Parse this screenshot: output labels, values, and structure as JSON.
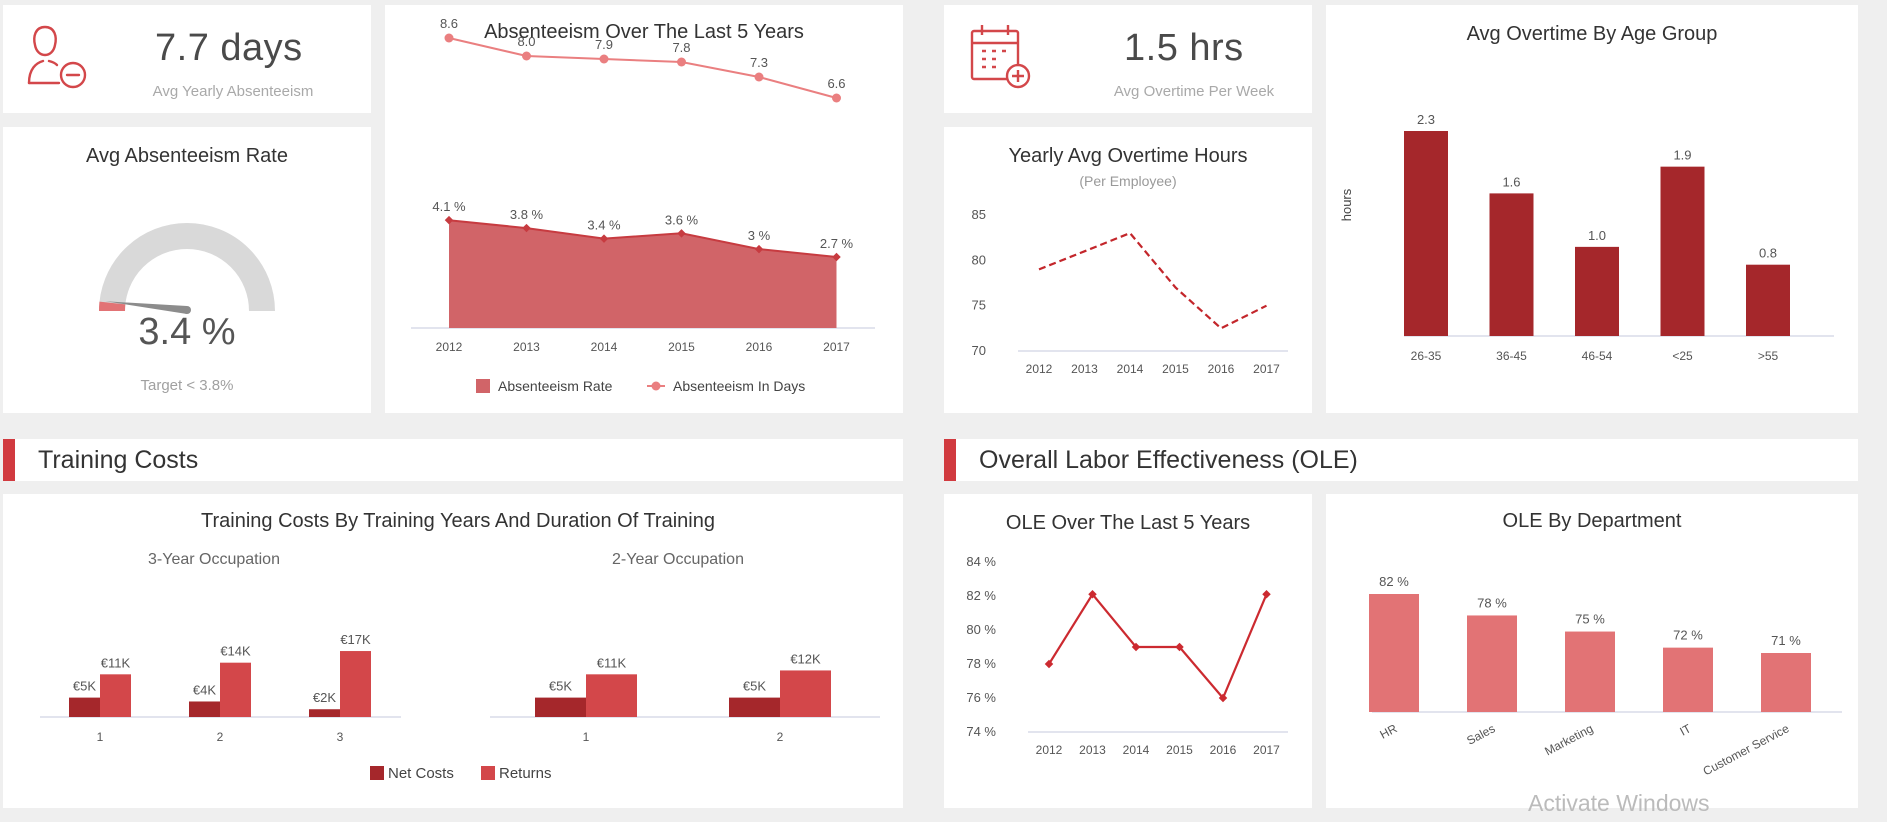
{
  "colors": {
    "dark_red": "#a5272b",
    "red": "#d3474a",
    "area": "#d16468",
    "line_pink": "#ea7f80",
    "bar_pink": "#e27375",
    "gauge_bg": "#d9d9d9"
  },
  "kpi_absenteeism": {
    "value": "7.7 days",
    "label": "Avg Yearly Absenteeism",
    "icon": "user-minus-icon"
  },
  "kpi_overtime": {
    "value": "1.5 hrs",
    "label": "Avg Overtime Per Week",
    "icon": "calendar-plus-icon"
  },
  "gauge": {
    "title": "Avg Absenteeism Rate",
    "value": 3.4,
    "value_label": "3.4 %",
    "target_label": "Target < 3.8%",
    "target": 3.8
  },
  "sections": {
    "training": "Training Costs",
    "ole": "Overall Labor Effectiveness (OLE)"
  },
  "watermark": "Activate Windows",
  "chart_data": [
    {
      "id": "absenteeism",
      "type": "line",
      "title": "Absenteeism Over The Last 5 Years",
      "x": [
        "2012",
        "2013",
        "2014",
        "2015",
        "2016",
        "2017"
      ],
      "series": [
        {
          "name": "Absenteeism Rate",
          "kind": "area",
          "values": [
            4.1,
            3.8,
            3.4,
            3.6,
            3.0,
            2.7
          ],
          "labels": [
            "4.1 %",
            "3.8 %",
            "3.4 %",
            "3.6 %",
            "3 %",
            "2.7 %"
          ]
        },
        {
          "name": "Absenteeism In Days",
          "kind": "line",
          "values": [
            8.6,
            8.0,
            7.9,
            7.8,
            7.3,
            6.6
          ],
          "labels": [
            "8.6",
            "8.0",
            "7.9",
            "7.8",
            "7.3",
            "6.6"
          ]
        }
      ],
      "legend": "bottom"
    },
    {
      "id": "overtime_hours",
      "type": "line",
      "title": "Yearly Avg Overtime Hours",
      "subtitle": "(Per Employee)",
      "x": [
        "2012",
        "2013",
        "2014",
        "2015",
        "2016",
        "2017"
      ],
      "values": [
        79,
        81,
        83,
        77,
        72.5,
        75
      ],
      "yticks": [
        "85",
        "80",
        "75",
        "70"
      ],
      "ylim": [
        70,
        85
      ],
      "line_style": "dashed"
    },
    {
      "id": "overtime_age",
      "type": "bar",
      "title": "Avg Overtime By Age Group",
      "ylabel": "hours",
      "categories": [
        "26-35",
        "36-45",
        "46-54",
        "<25",
        ">55"
      ],
      "values": [
        2.3,
        1.6,
        1.0,
        1.9,
        0.8
      ],
      "labels": [
        "2.3",
        "1.6",
        "1.0",
        "1.9",
        "0.8"
      ],
      "ylim": [
        0,
        2.3
      ]
    },
    {
      "id": "training_costs",
      "type": "bar",
      "title": "Training Costs By Training Years And Duration Of Training",
      "legend": "bottom",
      "series_names": [
        "Net Costs",
        "Returns"
      ],
      "groups": [
        {
          "title": "3-Year Occupation",
          "categories": [
            "1",
            "2",
            "3"
          ],
          "net": [
            5,
            4,
            2
          ],
          "returns": [
            11,
            14,
            17
          ],
          "net_labels": [
            "€5K",
            "€4K",
            "€2K"
          ],
          "returns_labels": [
            "€11K",
            "€14K",
            "€17K"
          ]
        },
        {
          "title": "2-Year Occupation",
          "categories": [
            "1",
            "2"
          ],
          "net": [
            5,
            5
          ],
          "returns": [
            11,
            12
          ],
          "net_labels": [
            "€5K",
            "€5K"
          ],
          "returns_labels": [
            "€11K",
            "€12K"
          ]
        }
      ]
    },
    {
      "id": "ole_years",
      "type": "line",
      "title": "OLE Over The Last 5 Years",
      "x": [
        "2012",
        "2013",
        "2014",
        "2015",
        "2016",
        "2017"
      ],
      "values": [
        78.0,
        82.1,
        79.0,
        79.0,
        76.0,
        82.1
      ],
      "yticks": [
        "84 %",
        "82 %",
        "80 %",
        "78 %",
        "76 %",
        "74 %"
      ],
      "ylim": [
        74,
        84
      ]
    },
    {
      "id": "ole_dept",
      "type": "bar",
      "title": "OLE By Department",
      "categories": [
        "HR",
        "Sales",
        "Marketing",
        "IT",
        "Customer Service"
      ],
      "values": [
        82,
        78,
        75,
        72,
        71
      ],
      "labels": [
        "82 %",
        "78 %",
        "75 %",
        "72 %",
        "71 %"
      ]
    }
  ]
}
